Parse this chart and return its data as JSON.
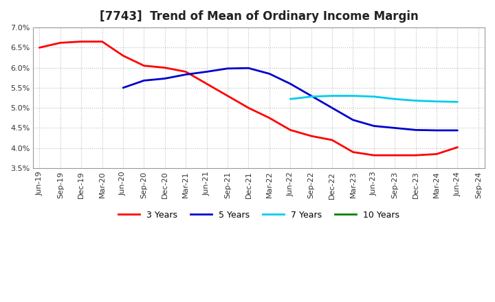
{
  "title": "[7743]  Trend of Mean of Ordinary Income Margin",
  "x_labels": [
    "Jun-19",
    "Sep-19",
    "Dec-19",
    "Mar-20",
    "Jun-20",
    "Sep-20",
    "Dec-20",
    "Mar-21",
    "Jun-21",
    "Sep-21",
    "Dec-21",
    "Mar-22",
    "Jun-22",
    "Sep-22",
    "Dec-22",
    "Mar-23",
    "Jun-23",
    "Sep-23",
    "Dec-23",
    "Mar-24",
    "Jun-24",
    "Sep-24"
  ],
  "y3": [
    6.5,
    6.62,
    6.65,
    6.65,
    6.3,
    6.05,
    6.0,
    5.9,
    5.6,
    5.3,
    5.0,
    4.75,
    4.45,
    4.3,
    4.2,
    3.9,
    3.82,
    3.82,
    3.82,
    3.85,
    4.02,
    null
  ],
  "y5": [
    null,
    null,
    null,
    null,
    5.5,
    5.68,
    5.73,
    5.83,
    5.9,
    5.98,
    5.99,
    5.85,
    5.6,
    5.3,
    5.0,
    4.7,
    4.55,
    4.5,
    4.45,
    4.44,
    4.44,
    null
  ],
  "y7": [
    null,
    null,
    null,
    null,
    null,
    null,
    null,
    null,
    null,
    null,
    null,
    null,
    5.22,
    5.28,
    5.3,
    5.3,
    5.28,
    5.22,
    5.18,
    5.16,
    5.15,
    null
  ],
  "y10": [
    null,
    null,
    null,
    null,
    null,
    null,
    null,
    null,
    null,
    null,
    null,
    null,
    null,
    null,
    null,
    null,
    null,
    null,
    null,
    null,
    null,
    null
  ],
  "ylim": [
    3.5,
    7.0
  ],
  "yticks": [
    3.5,
    4.0,
    4.5,
    5.0,
    5.5,
    6.0,
    6.5,
    7.0
  ],
  "colors": {
    "3yr": "#ff0000",
    "5yr": "#0000cd",
    "7yr": "#00ccee",
    "10yr": "#008000"
  },
  "legend_labels": [
    "3 Years",
    "5 Years",
    "7 Years",
    "10 Years"
  ],
  "background_color": "#ffffff",
  "grid_color": "#bbbbbb"
}
